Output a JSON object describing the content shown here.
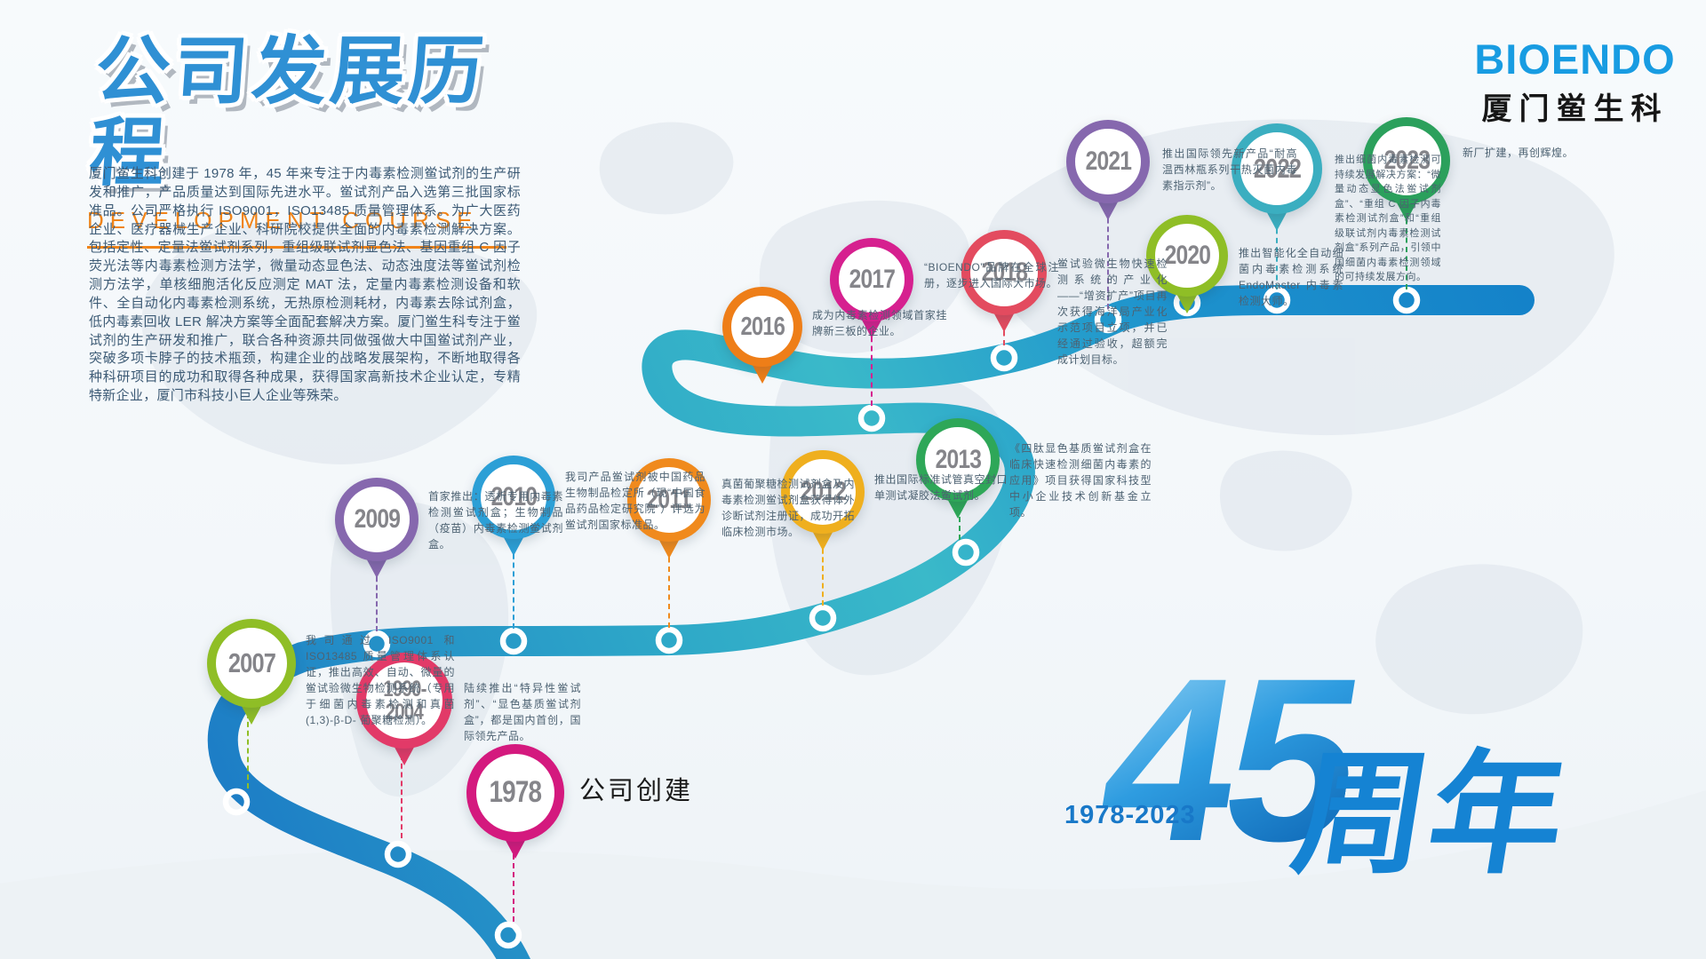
{
  "header": {
    "title": "公司发展历程",
    "subtitle": "DEVELOPMENT COURSE",
    "intro": "厦门鲎生科创建于 1978 年，45 年来专注于内毒素检测鲎试剂的生产研发和推广，产品质量达到国际先进水平。鲎试剂产品入选第三批国家标准品。公司严格执行 ISO9001，ISO13485 质量管理体系。为广大医药企业、医疗器械生产企业、科研院校提供全面的内毒素检测解决方案。包括定性、定量法鲎试剂系列，重组级联试剂显色法、基因重组 C 因子荧光法等内毒素检测方法学，微量动态显色法、动态浊度法等鲎试剂检测方法学，单核细胞活化反应测定 MAT 法，定量内毒素检测设备和软件、全自动化内毒素检测系统，无热原检测耗材，内毒素去除试剂盒，低内毒素回收 LER 解决方案等全面配套解决方案。厦门鲎生科专注于鲎试剂的生产研发和推广，联合各种资源共同做强做大中国鲎试剂产业，突破多项卡脖子的技术瓶颈，构建企业的战略发展架构，不断地取得各种科研项目的成功和取得各种成果，获得国家高新技术企业认定，专精特新企业，厦门市科技小巨人企业等殊荣。",
    "accent_color": "#f08419",
    "title_color": "#2f90d4"
  },
  "logo": {
    "brand": "BIOENDO",
    "company": "厦门鲎生科",
    "brand_color": "#189ce2"
  },
  "anniversary": {
    "number": "45",
    "suffix": "周年",
    "years_range": "1978-2023",
    "color": "#1583d3"
  },
  "timeline": [
    {
      "year": "1978",
      "lines": [
        "1978"
      ],
      "color": "#d4197e",
      "desc": "公司创建"
    },
    {
      "year": "1990-2004",
      "lines": [
        "1990-",
        "2004"
      ],
      "color": "#e23a68",
      "desc": "陆续推出“特异性鲎试剂”、“显色基质鲎试剂盒”，都是国内首创，国际领先产品。"
    },
    {
      "year": "2007",
      "lines": [
        "2007"
      ],
      "color": "#8fbe26",
      "desc": "我司通过 ISO9001 和 ISO13485 质量管理体系认证，推出高效、自动、微量的鲎试验微生物检测系统（专用于细菌内毒素检测和真菌 (1,3)-β-D- 葡聚糖检测）。"
    },
    {
      "year": "2009",
      "lines": [
        "2009"
      ],
      "color": "#8668ae",
      "desc": "首家推出：透析专用内毒素检测鲎试剂盒；生物制品（疫苗）内毒素检测鲎试剂盒。"
    },
    {
      "year": "2010",
      "lines": [
        "2010"
      ],
      "color": "#2c9fd6",
      "desc": "我司产品鲎试剂被中国药品生物制品检定所（现“中国食品药品检定研究院”）评选为鲎试剂国家标准品。"
    },
    {
      "year": "2011",
      "lines": [
        "2011"
      ],
      "color": "#f08a1d",
      "desc": "真菌葡聚糖检测试剂盒及内毒素检测鲎试剂盒获得体外诊断试剂注册证，成功开拓临床检测市场。"
    },
    {
      "year": "2012",
      "lines": [
        "2012"
      ],
      "color": "#efaf1e",
      "desc": "推出国际标准试管真空封口单测试凝胶法鲎试剂。"
    },
    {
      "year": "2013",
      "lines": [
        "2013"
      ],
      "color": "#2ea758",
      "desc": "《四肽显色基质鲎试剂盒在临床快速检测细菌内毒素的应用》项目获得国家科技型中小企业技术创新基金立项。"
    },
    {
      "year": "2016",
      "lines": [
        "2016"
      ],
      "color": "#ee7e18",
      "desc": "成为内毒素检测领域首家挂牌新三板的企业。"
    },
    {
      "year": "2017",
      "lines": [
        "2017"
      ],
      "color": "#d6208f",
      "desc": "“BIOENDO”品牌在全球注册，逐步进入国际大市场。"
    },
    {
      "year": "2018",
      "lines": [
        "2018"
      ],
      "color": "#e34b5f",
      "desc": "鲎试验微生物快速检测系统的产业化——“增资扩产”项目再次获得海洋局产业化示范项目立项，并已经通过验收，超额完成计划目标。"
    },
    {
      "year": "2020",
      "lines": [
        "2020"
      ],
      "color": "#8fbe26",
      "desc": "推出智能化全自动细菌内毒素检测系统 EndoMaster 内毒素检测大师。"
    },
    {
      "year": "2021",
      "lines": [
        "2021"
      ],
      "color": "#8668ae",
      "desc": "推出国际领先新产品“耐高温西林瓶系列干热灭菌内毒素指示剂”。"
    },
    {
      "year": "2022",
      "lines": [
        "2022"
      ],
      "color": "#3baec0",
      "desc": "推出细菌内毒素检测可持续发展解决方案：“微量动态显色法鲎试剂盒”、“重组 C 因子内毒素检测试剂盒”和“重组级联试剂内毒素检测试剂盒”系列产品，引领中国细菌内毒素检测领域的可持续发展方向。"
    },
    {
      "year": "2023",
      "lines": [
        "2023"
      ],
      "color": "#2ba05c",
      "desc": "新厂扩建，再创辉煌。"
    }
  ]
}
